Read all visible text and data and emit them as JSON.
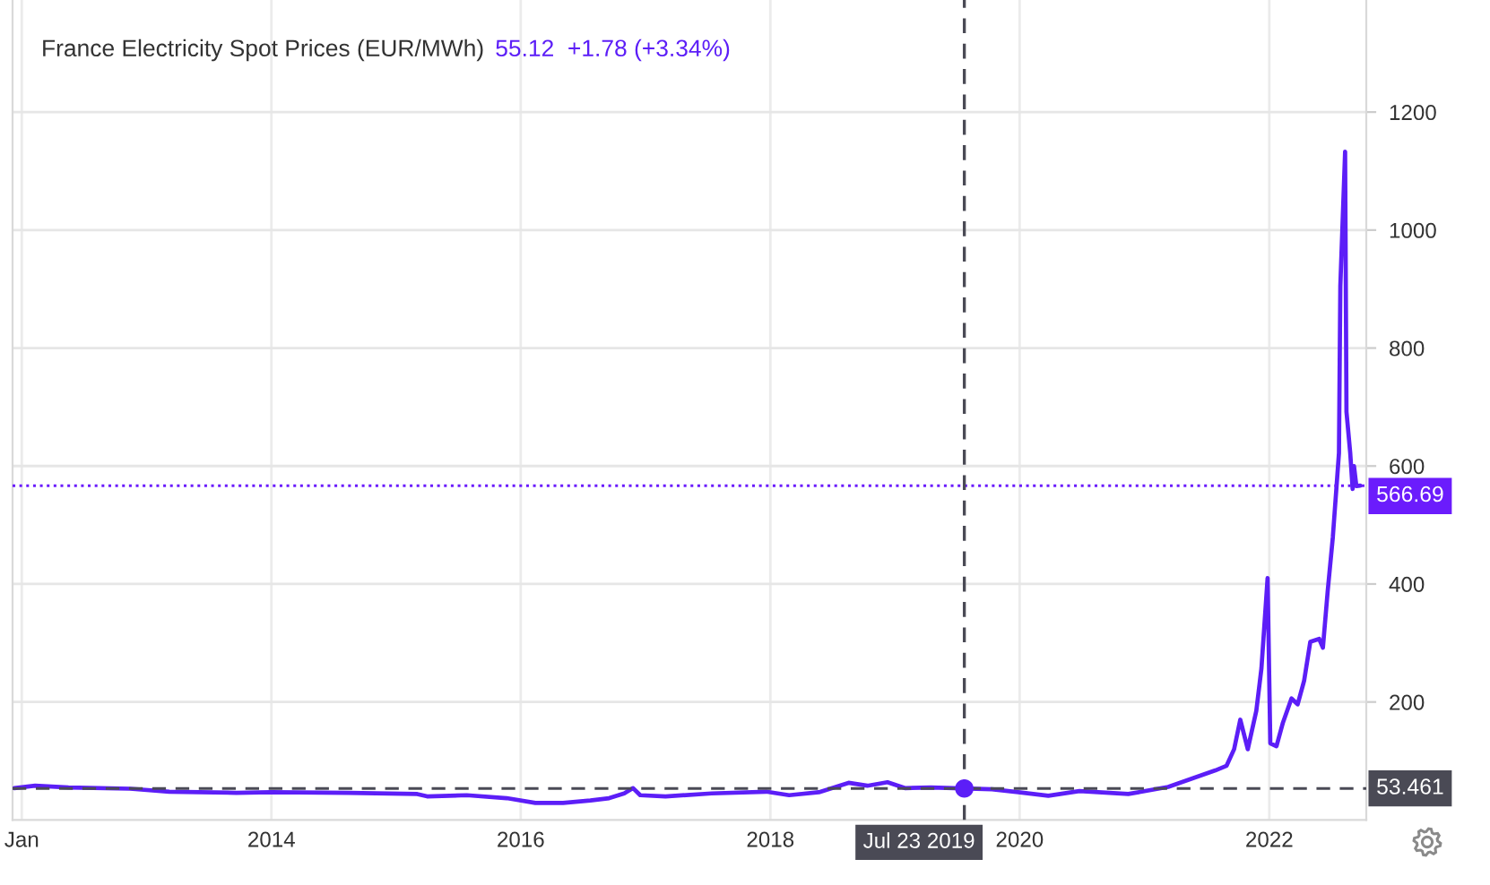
{
  "chart_data": {
    "type": "line",
    "title": "France Electricity Spot Prices (EUR/MWh)",
    "subtitle": "55.12  +1.78 (+3.34%)",
    "series": [
      {
        "color": "#5c1ef7",
        "x": [
          "2011-12-10",
          "2012-02-09",
          "2012-05-17",
          "2012-11-13",
          "2013-03-08",
          "2013-09-20",
          "2014-01-01",
          "2014-08-15",
          "2015-03-04",
          "2015-04-02",
          "2015-07-27",
          "2015-11-21",
          "2016-02-13",
          "2016-05-04",
          "2016-07-23",
          "2016-09-16",
          "2016-10-30",
          "2016-11-25",
          "2016-12-16",
          "2017-02-28",
          "2017-07-13",
          "2017-12-20",
          "2018-02-25",
          "2018-05-23",
          "2018-08-18",
          "2018-10-12",
          "2018-12-10",
          "2019-01-30",
          "2019-04-16",
          "2019-10-12",
          "2019-12-28",
          "2020-03-25",
          "2020-06-24",
          "2020-11-14",
          "2021-03-11",
          "2021-05-19",
          "2021-07-27",
          "2021-08-29",
          "2021-09-20",
          "2021-10-08",
          "2021-10-30",
          "2021-11-24",
          "2021-12-09",
          "2021-12-27",
          "2022-01-04",
          "2022-01-22",
          "2022-02-10",
          "2022-03-07",
          "2022-03-25",
          "2022-04-13",
          "2022-05-01",
          "2022-05-27",
          "2022-06-07",
          "2022-06-21",
          "2022-07-06",
          "2022-07-24",
          "2022-07-28",
          "2022-08-11",
          "2022-08-15",
          "2022-08-26",
          "2022-09-02",
          "2022-09-06",
          "2022-09-13",
          "2022-09-24"
        ],
        "values": [
          54,
          58,
          55,
          53,
          48,
          46,
          47,
          46,
          44,
          40,
          42,
          37,
          29,
          29,
          33,
          37,
          45,
          54,
          42,
          40,
          45,
          48,
          42,
          47,
          63,
          58,
          64,
          54,
          55,
          52,
          47,
          41,
          49,
          44,
          56,
          70,
          84,
          92,
          120,
          170,
          120,
          185,
          257,
          410,
          130,
          125,
          165,
          206,
          196,
          236,
          302,
          307,
          292,
          388,
          479,
          622,
          905,
          1133,
          692,
          622,
          561,
          600,
          566,
          566.69
        ]
      },
      {
        "type": "scatter",
        "marker": "circle",
        "color": "#5c1ef7",
        "x": [
          "2019-07-23"
        ],
        "values": [
          53.461
        ]
      }
    ],
    "xlim": [
      "2011-12-05",
      "2022-10-12"
    ],
    "xticks": [
      {
        "value": "2012-01-01",
        "label": "Jan"
      },
      {
        "value": "2014-01-01",
        "label": "2014"
      },
      {
        "value": "2016-01-01",
        "label": "2016"
      },
      {
        "value": "2018-01-01",
        "label": "2018"
      },
      {
        "value": "2020-01-01",
        "label": "2020"
      },
      {
        "value": "2022-01-01",
        "label": "2022"
      }
    ],
    "ylim": [
      0,
      1390
    ],
    "yticks": [
      200,
      400,
      600,
      800,
      1000,
      1200
    ],
    "grid": true,
    "ref_lines": [
      {
        "axis": "y",
        "value": 566.69,
        "label": "566.69",
        "color": "#6b1cfc",
        "line_style": "dotted"
      },
      {
        "axis": "y",
        "value": 53.461,
        "label": "53.461",
        "color": "#4a4a55",
        "line_style": "dashed"
      },
      {
        "axis": "x",
        "value": "2019-07-23",
        "label": "Jul 23 2019",
        "color": "#4a4a55",
        "line_style": "dashed"
      }
    ]
  }
}
